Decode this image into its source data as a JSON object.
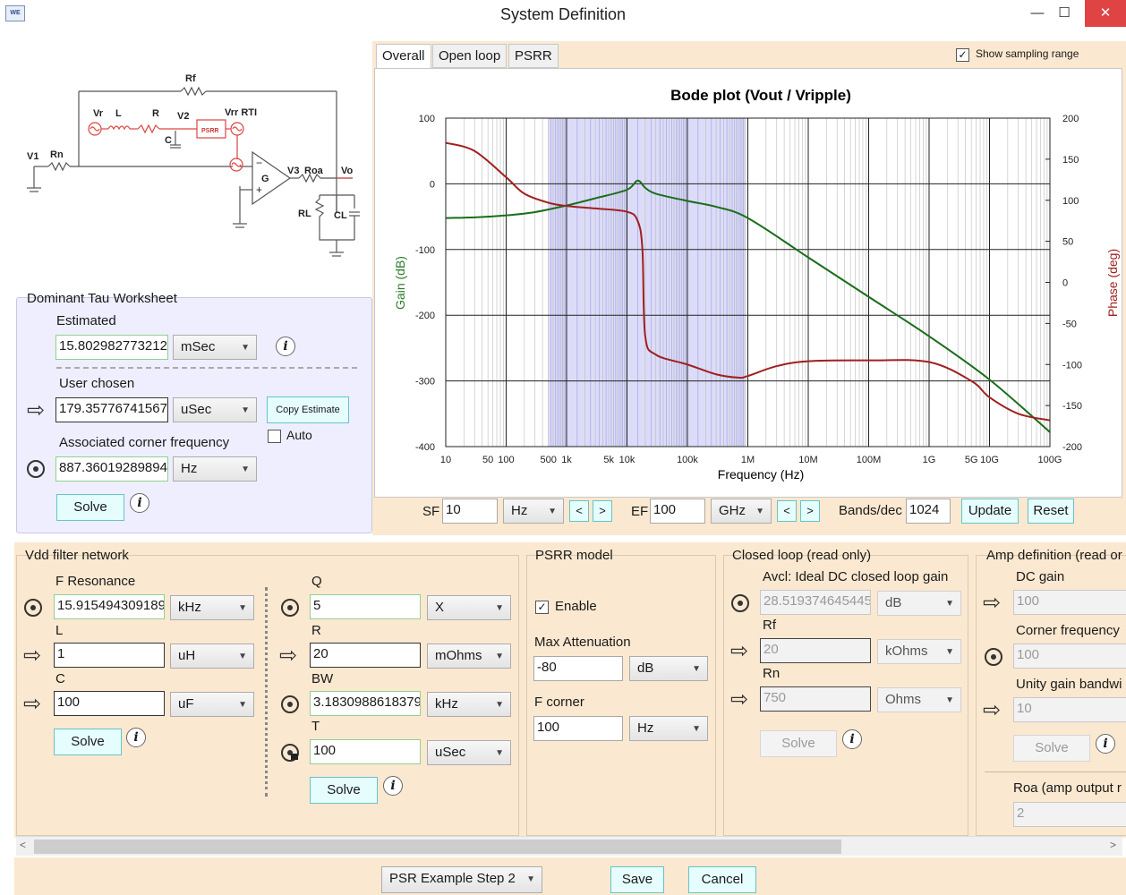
{
  "window": {
    "title": "System Definition",
    "app_icon_text": "WE",
    "minimize": "—",
    "maximize": "☐",
    "close": "✕"
  },
  "tabs": [
    {
      "label": "Overall"
    },
    {
      "label": "Open loop"
    },
    {
      "label": "PSRR"
    }
  ],
  "show_sampling_range": {
    "label": "Show sampling range",
    "checked": true
  },
  "schematic": {
    "labels": [
      "Rf",
      "Vr",
      "L",
      "R",
      "V2",
      "Vrr RTI",
      "PSRR",
      "C",
      "V1",
      "Rn",
      "G",
      "V3",
      "Roa",
      "Vo",
      "RL",
      "CL"
    ]
  },
  "dominant_tau": {
    "title": "Dominant Tau Worksheet",
    "estimated_label": "Estimated",
    "estimated_value": "15.8029827732127",
    "estimated_unit": "mSec",
    "user_label": "User chosen",
    "user_value": "179.357767415673",
    "user_unit": "uSec",
    "copy_btn": "Copy Estimate",
    "auto_label": "Auto",
    "auto_checked": false,
    "corner_label": "Associated corner frequency",
    "corner_value": "887.360192898943",
    "corner_unit": "Hz",
    "solve": "Solve"
  },
  "chart_data": {
    "type": "line",
    "title": "Bode plot (Vout / Vripple)",
    "xlabel": "Frequency (Hz)",
    "ylabel": "Gain (dB)",
    "y2label": "Phase (deg)",
    "x_scale": "log",
    "xlim": [
      10,
      100000000000
    ],
    "ylim": [
      -400,
      100
    ],
    "y2lim": [
      -200,
      200
    ],
    "x_ticks": [
      "10",
      "50",
      "100",
      "500",
      "1k",
      "5k",
      "10k",
      "100k",
      "1M",
      "10M",
      "100M",
      "1G",
      "5G",
      "10G",
      "100G"
    ],
    "y_ticks": [
      "100",
      "0",
      "-100",
      "-200",
      "-300",
      "-400"
    ],
    "y2_ticks": [
      "200",
      "150",
      "100",
      "50",
      "0",
      "-50",
      "-100",
      "-150",
      "-200"
    ],
    "grid": true,
    "shaded_range": [
      500,
      900000
    ],
    "series": [
      {
        "axis": "left",
        "color": "#1a6e1a",
        "x": [
          10,
          30,
          100,
          300,
          1000,
          3000,
          10000,
          15000,
          20000,
          30000,
          100000,
          300000,
          1000000,
          10000000,
          100000000,
          1000000000,
          10000000000,
          100000000000
        ],
        "y": [
          -52,
          -51,
          -48,
          -43,
          -33,
          -22,
          -9,
          5,
          -6,
          -15,
          -26,
          -35,
          -52,
          -112,
          -172,
          -232,
          -298,
          -378
        ]
      },
      {
        "axis": "right",
        "color": "#a02020",
        "x": [
          10,
          30,
          100,
          200,
          500,
          1000,
          3000,
          10000,
          15000,
          18000,
          20000,
          30000,
          100000,
          300000,
          700000,
          1000000,
          3000000,
          10000000,
          100000000,
          1000000000,
          5000000000,
          10000000000,
          30000000000,
          100000000000
        ],
        "y": [
          170,
          160,
          128,
          108,
          97,
          93,
          90,
          86,
          75,
          40,
          -65,
          -88,
          -100,
          -112,
          -116,
          -114,
          -102,
          -96,
          -95,
          -97,
          -120,
          -140,
          -160,
          -168
        ]
      }
    ]
  },
  "sweep": {
    "sf_label": "SF",
    "sf_value": "10",
    "sf_unit": "Hz",
    "ef_label": "EF",
    "ef_value": "100",
    "ef_unit": "GHz",
    "bands_label": "Bands/dec",
    "bands_value": "1024",
    "update": "Update",
    "reset": "Reset",
    "prev": "<",
    "next": ">"
  },
  "vdd": {
    "title": "Vdd filter network",
    "fres_label": "F Resonance",
    "fres_value": "15.9154943091895",
    "fres_unit": "kHz",
    "l_label": "L",
    "l_value": "1",
    "l_unit": "uH",
    "c_label": "C",
    "c_value": "100",
    "c_unit": "uF",
    "q_label": "Q",
    "q_value": "5",
    "q_unit": "X",
    "r_label": "R",
    "r_value": "20",
    "r_unit": "mOhms",
    "bw_label": "BW",
    "bw_value": "3.18309886183791",
    "bw_unit": "kHz",
    "t_label": "T",
    "t_value": "100",
    "t_unit": "uSec",
    "solve": "Solve"
  },
  "psrr": {
    "title": "PSRR model",
    "enable_label": "Enable",
    "enable_checked": true,
    "maxatt_label": "Max Attenuation",
    "maxatt_value": "-80",
    "maxatt_unit": "dB",
    "fcorner_label": "F corner",
    "fcorner_value": "100",
    "fcorner_unit": "Hz"
  },
  "closed_loop": {
    "title": "Closed loop (read only)",
    "avcl_label": "Avcl: Ideal DC closed loop gain",
    "avcl_value": "28.5193746454456",
    "avcl_unit": "dB",
    "rf_label": "Rf",
    "rf_value": "20",
    "rf_unit": "kOhms",
    "rn_label": "Rn",
    "rn_value": "750",
    "rn_unit": "Ohms",
    "solve": "Solve"
  },
  "amp": {
    "title": "Amp definition (read or",
    "dc_label": "DC gain",
    "dc_value": "100",
    "corner_label": "Corner frequency",
    "corner_value": "100",
    "ugb_label": "Unity gain bandwi",
    "ugb_value": "10",
    "solve": "Solve",
    "roa_label": "Roa (amp output r",
    "roa_value": "2"
  },
  "footer": {
    "preset": "PSR Example Step 2",
    "save": "Save",
    "cancel": "Cancel"
  },
  "glyphs": {
    "info": "i",
    "right_arrow": "⇨",
    "dropdown": "▼",
    "check": "✓",
    "scroll_left": "<",
    "scroll_right": ">"
  }
}
